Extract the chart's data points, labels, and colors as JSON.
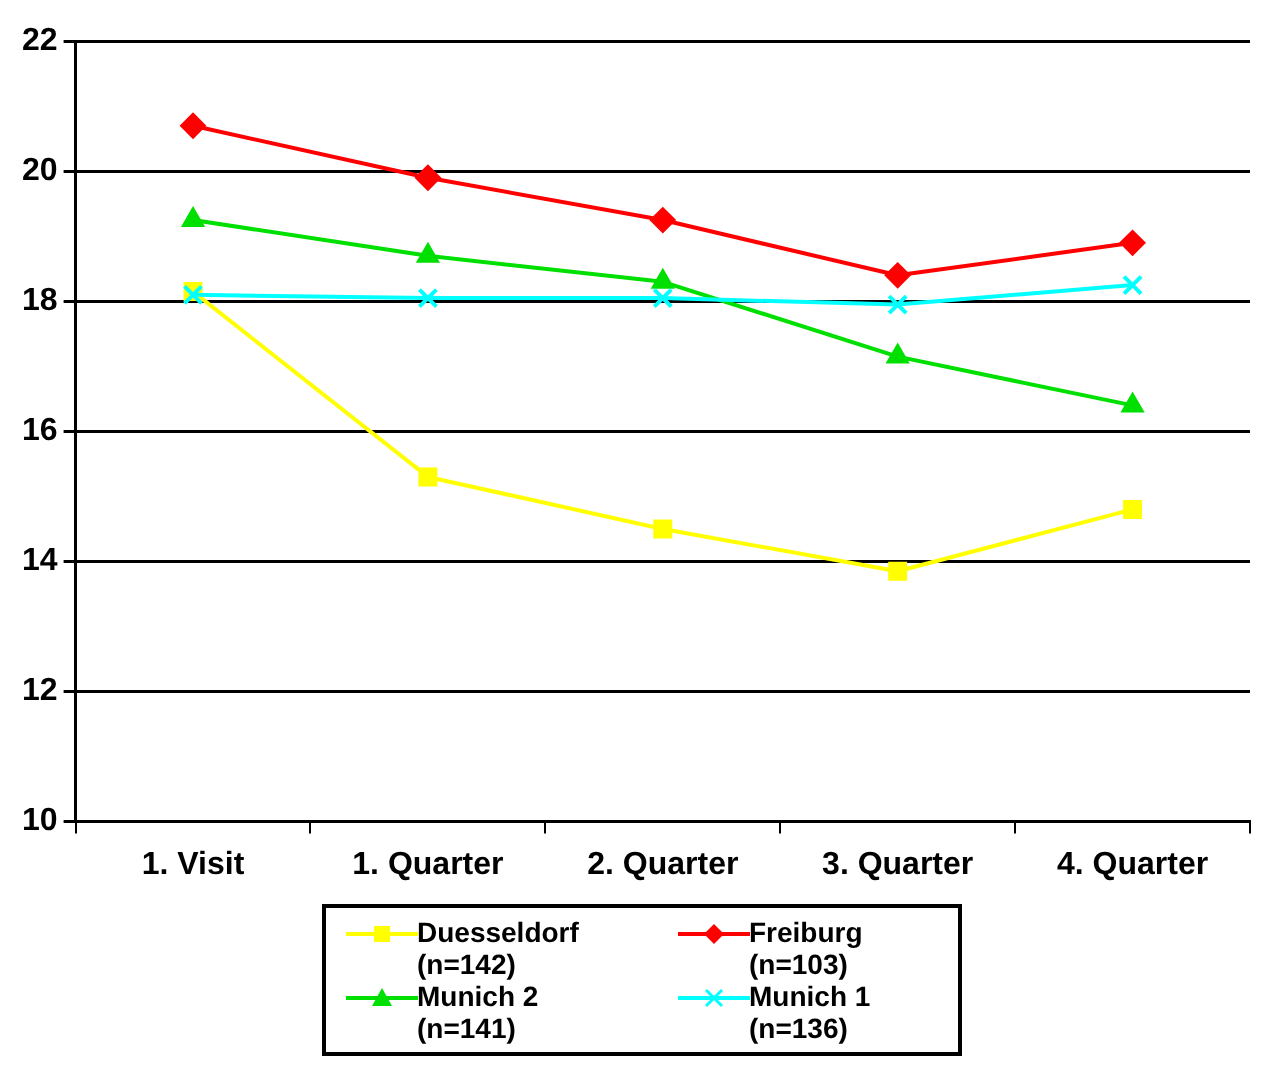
{
  "chart_data": {
    "type": "line",
    "categories": [
      "1. Visit",
      "1. Quarter",
      "2. Quarter",
      "3. Quarter",
      "4. Quarter"
    ],
    "series": [
      {
        "name": "Duesseldorf (n=142)",
        "color": "#ffff00",
        "marker": "square",
        "values": [
          18.15,
          15.3,
          14.5,
          13.85,
          14.8
        ]
      },
      {
        "name": "Freiburg (n=103)",
        "color": "#ff0000",
        "marker": "diamond",
        "values": [
          20.7,
          19.9,
          19.25,
          18.4,
          18.9
        ]
      },
      {
        "name": "Munich 2 (n=141)",
        "color": "#00e000",
        "marker": "triangle",
        "values": [
          19.25,
          18.7,
          18.3,
          17.15,
          16.4
        ]
      },
      {
        "name": "Munich 1 (n=136)",
        "color": "#00ffff",
        "marker": "cross",
        "values": [
          18.1,
          18.05,
          18.05,
          17.95,
          18.25
        ]
      }
    ],
    "ylim": [
      10,
      22
    ],
    "yticks": [
      10,
      12,
      14,
      16,
      18,
      20,
      22
    ],
    "grid": "y",
    "legend": "bottom",
    "line_style": "solid"
  }
}
